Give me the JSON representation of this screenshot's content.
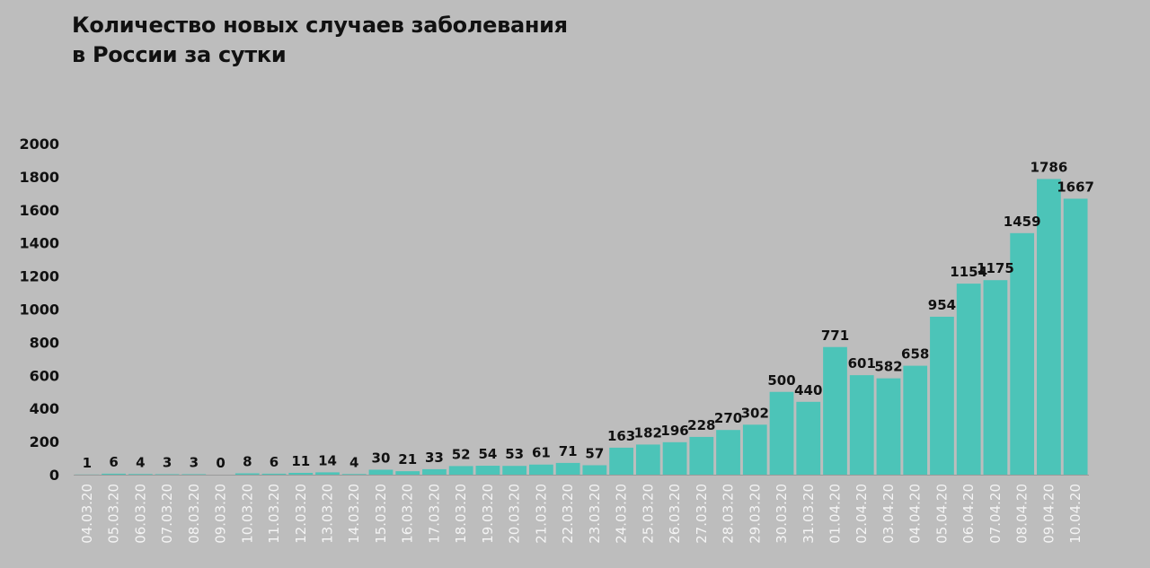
{
  "title_line1": "Количество новых случаев заболевания",
  "title_line2": "в России за сутки",
  "chart_data": {
    "type": "bar",
    "title": "Количество новых случаев заболевания в России за сутки",
    "xlabel": "",
    "ylabel": "",
    "ylim": [
      0,
      2000
    ],
    "yticks": [
      "0",
      "200",
      "400",
      "600",
      "800",
      "1000",
      "1200",
      "1400",
      "1600",
      "1800",
      "2000"
    ],
    "grid": false,
    "bar_color": "#4cc4b8",
    "categories": [
      "04.03.20",
      "05.03.20",
      "06.03.20",
      "07.03.20",
      "08.03.20",
      "09.03.20",
      "10.03.20",
      "11.03.20",
      "12.03.20",
      "13.03.20",
      "14.03.20",
      "15.03.20",
      "16.03.20",
      "17.03.20",
      "18.03.20",
      "19.03.20",
      "20.03.20",
      "21.03.20",
      "22.03.20",
      "23.03.20",
      "24.03.20",
      "25.03.20",
      "26.03.20",
      "27.03.20",
      "28.03.20",
      "29.03.20",
      "30.03.20",
      "31.03.20",
      "01.04.20",
      "02.04.20",
      "03.04.20",
      "04.04.20",
      "05.04.20",
      "06.04.20",
      "07.04.20",
      "08.04.20",
      "09.04.20",
      "10.04.20"
    ],
    "values": [
      1,
      6,
      4,
      3,
      3,
      0,
      8,
      6,
      11,
      14,
      4,
      30,
      21,
      33,
      52,
      54,
      53,
      61,
      71,
      57,
      163,
      182,
      196,
      228,
      270,
      302,
      500,
      440,
      771,
      601,
      582,
      658,
      954,
      1154,
      1175,
      1459,
      1786,
      1667
    ]
  }
}
